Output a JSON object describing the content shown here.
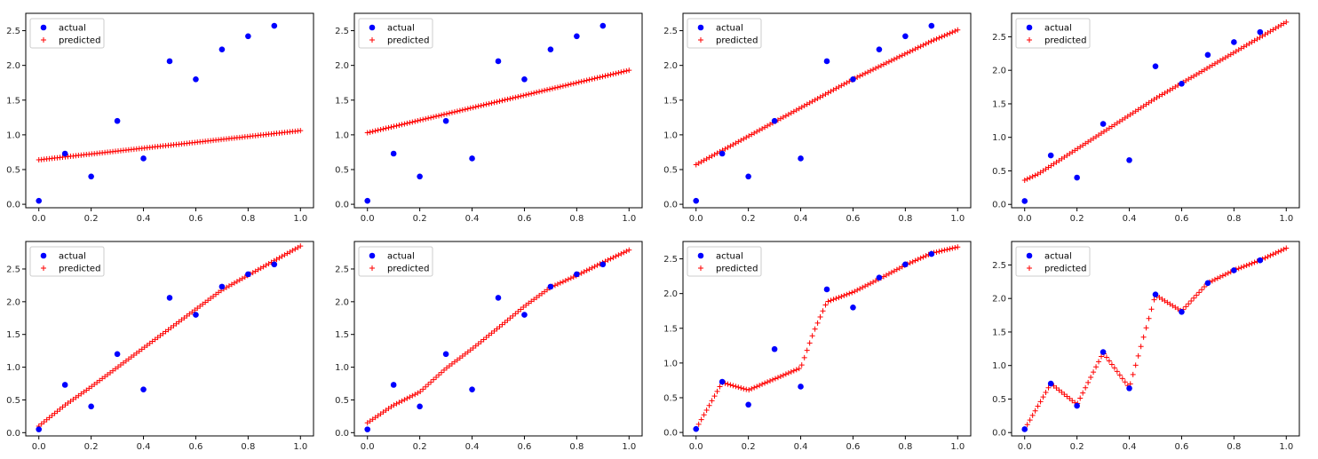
{
  "figure": {
    "actual_color": "#0000ff",
    "predicted_color": "#ff0000",
    "legend_labels": {
      "actual": "actual",
      "predicted": "predicted"
    },
    "actual_points": {
      "x": [
        0.0,
        0.1,
        0.2,
        0.3,
        0.4,
        0.5,
        0.6,
        0.7,
        0.8,
        0.9
      ],
      "y": [
        0.05,
        0.73,
        0.4,
        1.2,
        0.66,
        2.06,
        1.8,
        2.23,
        2.42,
        2.57
      ]
    }
  },
  "chart_data": [
    {
      "type": "scatter",
      "row": 1,
      "col": 1,
      "xlim": [
        -0.05,
        1.05
      ],
      "ylim": [
        -0.05,
        2.75
      ],
      "xticks": [
        "0.0",
        "0.2",
        "0.4",
        "0.6",
        "0.8",
        "1.0"
      ],
      "yticks": [
        "0.0",
        "0.5",
        "1.0",
        "1.5",
        "2.0",
        "2.5"
      ],
      "legend": "top-left",
      "series": [
        {
          "name": "actual",
          "marker": "circle",
          "x": [
            0.0,
            0.1,
            0.2,
            0.3,
            0.4,
            0.5,
            0.6,
            0.7,
            0.8,
            0.9
          ],
          "y": [
            0.05,
            0.73,
            0.4,
            1.2,
            0.66,
            2.06,
            1.8,
            2.23,
            2.42,
            2.57
          ]
        },
        {
          "name": "predicted",
          "marker": "plus",
          "x_range": [
            0.0,
            1.0
          ],
          "n_points": 100,
          "x": [
            0,
            1
          ],
          "y": [
            0.64,
            1.06
          ]
        }
      ]
    },
    {
      "type": "scatter",
      "row": 1,
      "col": 2,
      "xlim": [
        -0.05,
        1.05
      ],
      "ylim": [
        -0.05,
        2.75
      ],
      "xticks": [
        "0.0",
        "0.2",
        "0.4",
        "0.6",
        "0.8",
        "1.0"
      ],
      "yticks": [
        "0.0",
        "0.5",
        "1.0",
        "1.5",
        "2.0",
        "2.5"
      ],
      "legend": "top-left",
      "series": [
        {
          "name": "actual",
          "marker": "circle",
          "x": [
            0.0,
            0.1,
            0.2,
            0.3,
            0.4,
            0.5,
            0.6,
            0.7,
            0.8,
            0.9
          ],
          "y": [
            0.05,
            0.73,
            0.4,
            1.2,
            0.66,
            2.06,
            1.8,
            2.23,
            2.42,
            2.57
          ]
        },
        {
          "name": "predicted",
          "marker": "plus",
          "x_range": [
            0.0,
            1.0
          ],
          "n_points": 100,
          "x": [
            0,
            1
          ],
          "y": [
            1.03,
            1.93
          ]
        }
      ]
    },
    {
      "type": "scatter",
      "row": 1,
      "col": 3,
      "xlim": [
        -0.05,
        1.05
      ],
      "ylim": [
        -0.05,
        2.75
      ],
      "xticks": [
        "0.0",
        "0.2",
        "0.4",
        "0.6",
        "0.8",
        "1.0"
      ],
      "yticks": [
        "0.0",
        "0.5",
        "1.0",
        "1.5",
        "2.0",
        "2.5"
      ],
      "legend": "top-left",
      "series": [
        {
          "name": "actual",
          "marker": "circle",
          "x": [
            0.0,
            0.1,
            0.2,
            0.3,
            0.4,
            0.5,
            0.6,
            0.7,
            0.8,
            0.9
          ],
          "y": [
            0.05,
            0.73,
            0.4,
            1.2,
            0.66,
            2.06,
            1.8,
            2.23,
            2.42,
            2.57
          ]
        },
        {
          "name": "predicted",
          "marker": "plus",
          "x_range": [
            0.0,
            1.0
          ],
          "n_points": 100,
          "x": [
            0,
            0.6,
            0.9,
            1
          ],
          "y": [
            0.57,
            1.8,
            2.35,
            2.51
          ]
        }
      ]
    },
    {
      "type": "scatter",
      "row": 1,
      "col": 4,
      "xlim": [
        -0.05,
        1.05
      ],
      "ylim": [
        -0.05,
        2.85
      ],
      "xticks": [
        "0.0",
        "0.2",
        "0.4",
        "0.6",
        "0.8",
        "1.0"
      ],
      "yticks": [
        "0.0",
        "0.5",
        "1.0",
        "1.5",
        "2.0",
        "2.5"
      ],
      "legend": "top-left",
      "series": [
        {
          "name": "actual",
          "marker": "circle",
          "x": [
            0.0,
            0.1,
            0.2,
            0.3,
            0.4,
            0.5,
            0.6,
            0.7,
            0.8,
            0.9
          ],
          "y": [
            0.05,
            0.73,
            0.4,
            1.2,
            0.66,
            2.06,
            1.8,
            2.23,
            2.42,
            2.57
          ]
        },
        {
          "name": "predicted",
          "marker": "plus",
          "x_range": [
            0.0,
            1.0
          ],
          "n_points": 100,
          "x": [
            0,
            0.05,
            0.5,
            1
          ],
          "y": [
            0.36,
            0.45,
            1.58,
            2.72
          ]
        }
      ]
    },
    {
      "type": "scatter",
      "row": 2,
      "col": 1,
      "xlim": [
        -0.05,
        1.05
      ],
      "ylim": [
        -0.05,
        2.92
      ],
      "xticks": [
        "0.0",
        "0.2",
        "0.4",
        "0.6",
        "0.8",
        "1.0"
      ],
      "yticks": [
        "0.0",
        "0.5",
        "1.0",
        "1.5",
        "2.0",
        "2.5"
      ],
      "legend": "top-left",
      "series": [
        {
          "name": "actual",
          "marker": "circle",
          "x": [
            0.0,
            0.1,
            0.2,
            0.3,
            0.4,
            0.5,
            0.6,
            0.7,
            0.8,
            0.9
          ],
          "y": [
            0.05,
            0.73,
            0.4,
            1.2,
            0.66,
            2.06,
            1.8,
            2.23,
            2.42,
            2.57
          ]
        },
        {
          "name": "predicted",
          "marker": "plus",
          "x_range": [
            0.0,
            1.0
          ],
          "n_points": 100,
          "x": [
            0,
            0.1,
            0.2,
            0.7,
            1
          ],
          "y": [
            0.1,
            0.42,
            0.7,
            2.18,
            2.85
          ]
        }
      ]
    },
    {
      "type": "scatter",
      "row": 2,
      "col": 2,
      "xlim": [
        -0.05,
        1.05
      ],
      "ylim": [
        -0.05,
        2.92
      ],
      "xticks": [
        "0.0",
        "0.2",
        "0.4",
        "0.6",
        "0.8",
        "1.0"
      ],
      "yticks": [
        "0.0",
        "0.5",
        "1.0",
        "1.5",
        "2.0",
        "2.5"
      ],
      "legend": "top-left",
      "series": [
        {
          "name": "actual",
          "marker": "circle",
          "x": [
            0.0,
            0.1,
            0.2,
            0.3,
            0.4,
            0.5,
            0.6,
            0.7,
            0.8,
            0.9
          ],
          "y": [
            0.05,
            0.73,
            0.4,
            1.2,
            0.66,
            2.06,
            1.8,
            2.23,
            2.42,
            2.57
          ]
        },
        {
          "name": "predicted",
          "marker": "plus",
          "x_range": [
            0.0,
            1.0
          ],
          "n_points": 100,
          "x": [
            0,
            0.1,
            0.2,
            0.3,
            0.4,
            0.5,
            0.6,
            0.7,
            0.8,
            0.9,
            1
          ],
          "y": [
            0.15,
            0.42,
            0.62,
            0.98,
            1.28,
            1.6,
            1.93,
            2.22,
            2.4,
            2.6,
            2.79
          ]
        }
      ]
    },
    {
      "type": "scatter",
      "row": 2,
      "col": 3,
      "xlim": [
        -0.05,
        1.05
      ],
      "ylim": [
        -0.05,
        2.75
      ],
      "xticks": [
        "0.0",
        "0.2",
        "0.4",
        "0.6",
        "0.8",
        "1.0"
      ],
      "yticks": [
        "0.0",
        "0.5",
        "1.0",
        "1.5",
        "2.0",
        "2.5"
      ],
      "legend": "top-left",
      "series": [
        {
          "name": "actual",
          "marker": "circle",
          "x": [
            0.0,
            0.1,
            0.2,
            0.3,
            0.4,
            0.5,
            0.6,
            0.7,
            0.8,
            0.9
          ],
          "y": [
            0.05,
            0.73,
            0.4,
            1.2,
            0.66,
            2.06,
            1.8,
            2.23,
            2.42,
            2.57
          ]
        },
        {
          "name": "predicted",
          "marker": "plus",
          "x_range": [
            0.0,
            1.0
          ],
          "n_points": 100,
          "x": [
            0,
            0.1,
            0.2,
            0.3,
            0.4,
            0.45,
            0.5,
            0.6,
            0.7,
            0.8,
            0.9,
            1
          ],
          "y": [
            0.05,
            0.72,
            0.61,
            0.77,
            0.93,
            1.45,
            1.88,
            2.02,
            2.21,
            2.41,
            2.58,
            2.67
          ]
        }
      ]
    },
    {
      "type": "scatter",
      "row": 2,
      "col": 4,
      "xlim": [
        -0.05,
        1.05
      ],
      "ylim": [
        -0.05,
        2.85
      ],
      "xticks": [
        "0.0",
        "0.2",
        "0.4",
        "0.6",
        "0.8",
        "1.0"
      ],
      "yticks": [
        "0.0",
        "0.5",
        "1.0",
        "1.5",
        "2.0",
        "2.5"
      ],
      "legend": "top-left",
      "series": [
        {
          "name": "actual",
          "marker": "circle",
          "x": [
            0.0,
            0.1,
            0.2,
            0.3,
            0.4,
            0.5,
            0.6,
            0.7,
            0.8,
            0.9
          ],
          "y": [
            0.05,
            0.73,
            0.4,
            1.2,
            0.66,
            2.06,
            1.8,
            2.23,
            2.42,
            2.57
          ]
        },
        {
          "name": "predicted",
          "marker": "plus",
          "x_range": [
            0.0,
            1.0
          ],
          "n_points": 100,
          "x": [
            0,
            0.1,
            0.2,
            0.3,
            0.4,
            0.5,
            0.6,
            0.7,
            0.8,
            0.9,
            1
          ],
          "y": [
            0.05,
            0.73,
            0.42,
            1.19,
            0.67,
            2.05,
            1.81,
            2.23,
            2.42,
            2.57,
            2.75
          ]
        }
      ]
    }
  ]
}
